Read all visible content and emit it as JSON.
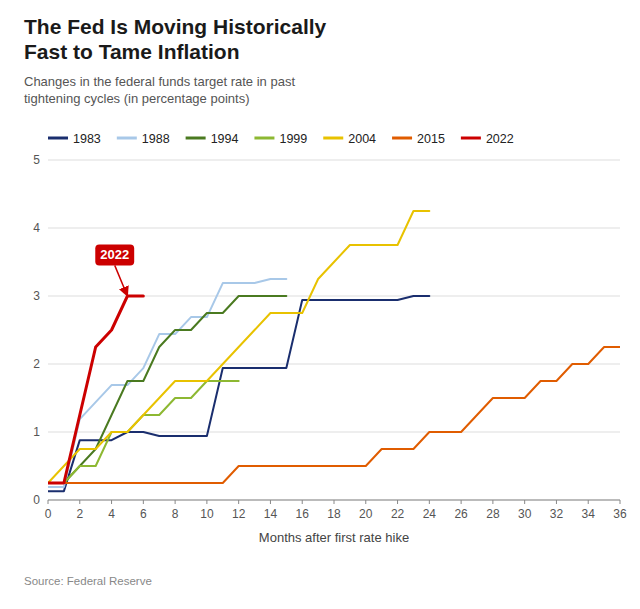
{
  "chart_data": {
    "type": "line",
    "title": "The Fed Is Moving Historically\nFast to Tame Inflation",
    "subtitle": "Changes in the federal funds target rate in past\ntightening cycles (in percentage points)",
    "x_label": "Months after first rate hike",
    "source": "Source: Federal Reserve",
    "series": [
      {
        "name": "1983",
        "color": "#1a2e6e",
        "x": [
          0,
          1,
          2,
          3,
          4,
          5,
          6,
          7,
          8,
          9,
          10,
          11,
          12,
          13,
          14,
          15,
          16,
          17,
          18,
          19,
          20,
          21,
          22,
          23,
          24
        ],
        "values": [
          0.13,
          0.13,
          0.88,
          0.88,
          0.88,
          1.0,
          1.0,
          0.94,
          0.94,
          0.94,
          0.94,
          1.94,
          1.94,
          1.94,
          1.94,
          1.94,
          2.94,
          2.94,
          2.94,
          2.94,
          2.94,
          2.94,
          2.94,
          3.0,
          3.0
        ]
      },
      {
        "name": "1988",
        "color": "#a8c8e8",
        "x": [
          0,
          1,
          2,
          3,
          4,
          5,
          6,
          7,
          8,
          9,
          10,
          11,
          12,
          13,
          14,
          15
        ],
        "values": [
          0.19,
          0.19,
          1.19,
          1.44,
          1.69,
          1.69,
          1.94,
          2.44,
          2.44,
          2.69,
          2.69,
          3.19,
          3.19,
          3.19,
          3.25,
          3.25
        ]
      },
      {
        "name": "1994",
        "color": "#4a7a20",
        "x": [
          0,
          1,
          2,
          3,
          4,
          5,
          6,
          7,
          8,
          9,
          10,
          11,
          12,
          13,
          14,
          15
        ],
        "values": [
          0.25,
          0.25,
          0.5,
          0.75,
          1.25,
          1.75,
          1.75,
          2.25,
          2.5,
          2.5,
          2.75,
          2.75,
          3.0,
          3.0,
          3.0,
          3.0
        ]
      },
      {
        "name": "1999",
        "color": "#8db832",
        "x": [
          0,
          1,
          2,
          3,
          4,
          5,
          6,
          7,
          8,
          9,
          10,
          11,
          12
        ],
        "values": [
          0.25,
          0.25,
          0.5,
          0.5,
          1.0,
          1.0,
          1.25,
          1.25,
          1.5,
          1.5,
          1.75,
          1.75,
          1.75
        ]
      },
      {
        "name": "2004",
        "color": "#e8c200",
        "x": [
          0,
          1,
          2,
          3,
          4,
          5,
          6,
          7,
          8,
          9,
          10,
          11,
          12,
          13,
          14,
          15,
          16,
          17,
          18,
          19,
          20,
          21,
          22,
          23,
          24
        ],
        "values": [
          0.25,
          0.5,
          0.75,
          0.75,
          1.0,
          1.0,
          1.25,
          1.5,
          1.75,
          1.75,
          1.75,
          2.0,
          2.25,
          2.5,
          2.75,
          2.75,
          2.75,
          3.25,
          3.5,
          3.75,
          3.75,
          3.75,
          3.75,
          4.25,
          4.25
        ]
      },
      {
        "name": "2015",
        "color": "#e05c00",
        "x": [
          0,
          1,
          2,
          3,
          4,
          5,
          6,
          7,
          8,
          9,
          10,
          11,
          12,
          13,
          14,
          15,
          16,
          17,
          18,
          19,
          20,
          21,
          22,
          23,
          24,
          25,
          26,
          27,
          28,
          29,
          30,
          31,
          32,
          33,
          34,
          35,
          36
        ],
        "values": [
          0.25,
          0.25,
          0.25,
          0.25,
          0.25,
          0.25,
          0.25,
          0.25,
          0.25,
          0.25,
          0.25,
          0.25,
          0.5,
          0.5,
          0.5,
          0.5,
          0.5,
          0.5,
          0.5,
          0.5,
          0.5,
          0.75,
          0.75,
          0.75,
          1.0,
          1.0,
          1.0,
          1.25,
          1.5,
          1.5,
          1.5,
          1.75,
          1.75,
          2.0,
          2.0,
          2.25,
          2.25
        ]
      },
      {
        "name": "2022",
        "color": "#cc0000",
        "x": [
          0,
          1,
          2,
          3,
          4,
          5,
          6
        ],
        "values": [
          0.25,
          0.25,
          1.25,
          2.25,
          2.5,
          3.0,
          3.0
        ]
      }
    ],
    "xlim": [
      0,
      36
    ],
    "ylim": [
      0,
      5
    ],
    "xticks": [
      0,
      2,
      4,
      6,
      8,
      10,
      12,
      14,
      16,
      18,
      20,
      22,
      24,
      26,
      28,
      30,
      32,
      34,
      36
    ],
    "yticks": [
      0,
      1,
      2,
      3,
      4,
      5
    ],
    "grid": true,
    "legend": "top",
    "annotations": [
      {
        "text": "2022",
        "x": 5,
        "y": 3.0,
        "text_x": 4.2,
        "text_y": 3.45,
        "color": "#cc0000"
      }
    ]
  }
}
